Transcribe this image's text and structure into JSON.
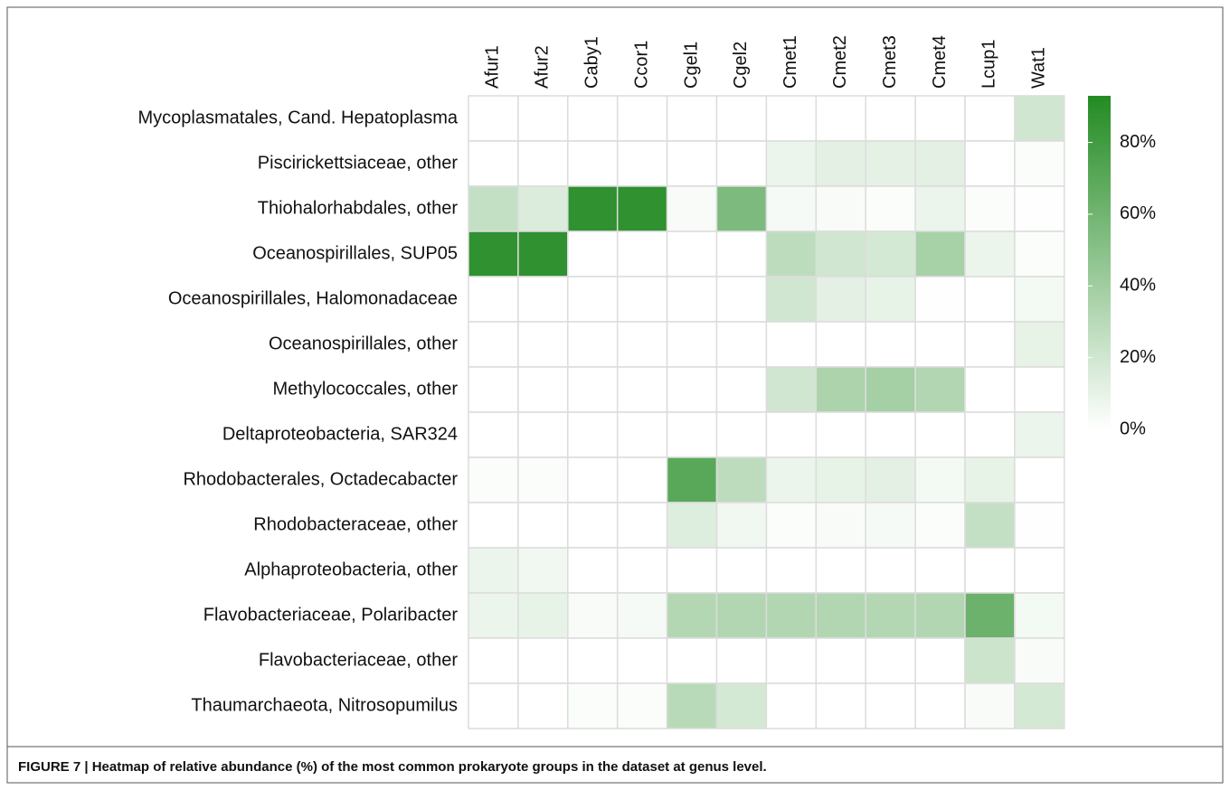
{
  "chart_data": {
    "type": "heatmap",
    "caption": "FIGURE 7 | Heatmap of relative abundance (%) of the most common prokaryote groups in the dataset at genus level.",
    "columns": [
      "Afur1",
      "Afur2",
      "Caby1",
      "Ccor1",
      "Cgel1",
      "Cgel2",
      "Cmet1",
      "Cmet2",
      "Cmet3",
      "Cmet4",
      "Lcup1",
      "Wat1"
    ],
    "rows": [
      "Mycoplasmatales, Cand. Hepatoplasma",
      "Piscirickettsiaceae, other",
      "Thiohalorhabdales, other",
      "Oceanospirillales, SUP05",
      "Oceanospirillales, Halomonadaceae",
      "Oceanospirillales, other",
      "Methylococcales, other",
      "Deltaproteobacteria, SAR324",
      "Rhodobacterales, Octadecabacter",
      "Rhodobacteraceae, other",
      "Alphaproteobacteria, other",
      "Flavobacteriaceae, Polaribacter",
      "Flavobacteriaceae, other",
      "Thaumarchaeota, Nitrosopumilus"
    ],
    "values": [
      [
        0,
        0,
        0,
        0,
        0,
        0,
        0,
        0,
        0,
        0,
        0,
        20
      ],
      [
        0,
        0,
        0,
        0,
        0,
        0,
        8,
        12,
        11,
        12,
        0,
        2
      ],
      [
        25,
        15,
        88,
        88,
        3,
        55,
        4,
        3,
        2,
        8,
        2,
        1
      ],
      [
        88,
        88,
        0,
        0,
        0,
        0,
        28,
        20,
        18,
        37,
        8,
        2
      ],
      [
        0,
        0,
        0,
        0,
        0,
        0,
        20,
        12,
        10,
        1,
        0,
        5
      ],
      [
        0,
        0,
        0,
        0,
        0,
        0,
        0,
        0,
        0,
        0,
        0,
        10
      ],
      [
        0,
        0,
        0,
        0,
        0,
        0,
        20,
        35,
        38,
        33,
        0,
        0
      ],
      [
        0,
        0,
        0,
        0,
        0,
        0,
        0,
        0,
        0,
        0,
        0,
        8
      ],
      [
        2,
        2,
        0,
        0,
        70,
        28,
        8,
        10,
        12,
        5,
        10,
        0
      ],
      [
        0,
        0,
        0,
        0,
        14,
        6,
        2,
        3,
        4,
        2,
        25,
        1
      ],
      [
        8,
        6,
        0,
        0,
        0,
        0,
        0,
        0,
        0,
        0,
        0,
        0
      ],
      [
        8,
        10,
        3,
        4,
        32,
        33,
        33,
        33,
        32,
        33,
        62,
        5
      ],
      [
        0,
        0,
        0,
        0,
        0,
        0,
        0,
        0,
        0,
        0,
        22,
        3
      ],
      [
        0,
        0,
        2,
        2,
        30,
        18,
        0,
        0,
        0,
        0,
        3,
        18
      ]
    ],
    "zlim": [
      0,
      93
    ],
    "zticks": [
      {
        "value": 0,
        "label": "0%"
      },
      {
        "value": 20,
        "label": "20%"
      },
      {
        "value": 40,
        "label": "40%"
      },
      {
        "value": 60,
        "label": "60%"
      },
      {
        "value": 80,
        "label": "80%"
      }
    ],
    "color_low": "#ffffff",
    "color_high": "#238b23"
  }
}
